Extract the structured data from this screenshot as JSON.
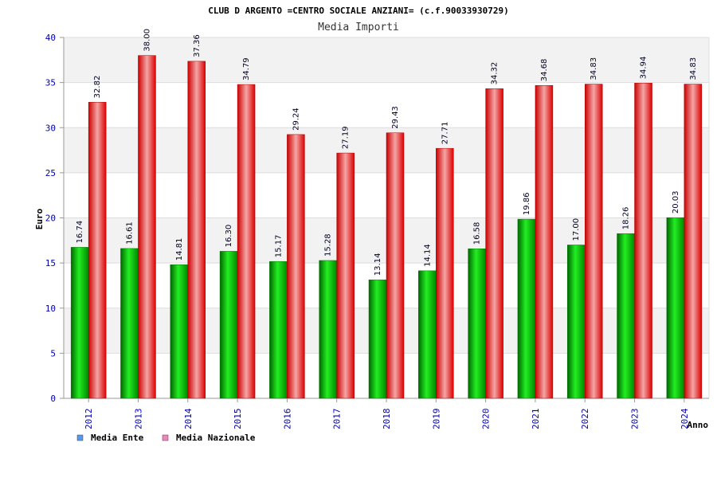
{
  "chart_data": {
    "type": "bar",
    "title": "CLUB D ARGENTO =CENTRO SOCIALE ANZIANI= (c.f.90033930729)",
    "subtitle": "Media Importi",
    "xlabel": "Anno",
    "ylabel": "Euro",
    "ylim": [
      0,
      40
    ],
    "yticks": [
      0,
      5,
      10,
      15,
      20,
      25,
      30,
      35,
      40
    ],
    "grid": true,
    "legend_position": "bottom-left",
    "categories": [
      "2012",
      "2013",
      "2014",
      "2015",
      "2016",
      "2017",
      "2018",
      "2019",
      "2020",
      "2021",
      "2022",
      "2023",
      "2024"
    ],
    "series": [
      {
        "name": "Media Ente",
        "color": "#00cc00",
        "legend_color": "#5599ee",
        "values": [
          16.74,
          16.61,
          14.81,
          16.3,
          15.17,
          15.28,
          13.14,
          14.14,
          16.58,
          19.86,
          17.0,
          18.26,
          20.03
        ],
        "labels": [
          "16.74",
          "16.61",
          "14.81",
          "16.30",
          "15.17",
          "15.28",
          "13.14",
          "14.14",
          "16.58",
          "19.86",
          "17.00",
          "18.26",
          "20.03"
        ]
      },
      {
        "name": "Media Nazionale",
        "color": "#ee0000",
        "legend_color": "#ee88bb",
        "values": [
          32.82,
          38.0,
          37.36,
          34.79,
          29.24,
          27.19,
          29.43,
          27.71,
          34.32,
          34.68,
          34.83,
          34.94,
          34.83
        ],
        "labels": [
          "32.82",
          "38.00",
          "37.36",
          "34.79",
          "29.24",
          "27.19",
          "29.43",
          "27.71",
          "34.32",
          "34.68",
          "34.83",
          "34.94",
          "34.83"
        ]
      }
    ]
  }
}
